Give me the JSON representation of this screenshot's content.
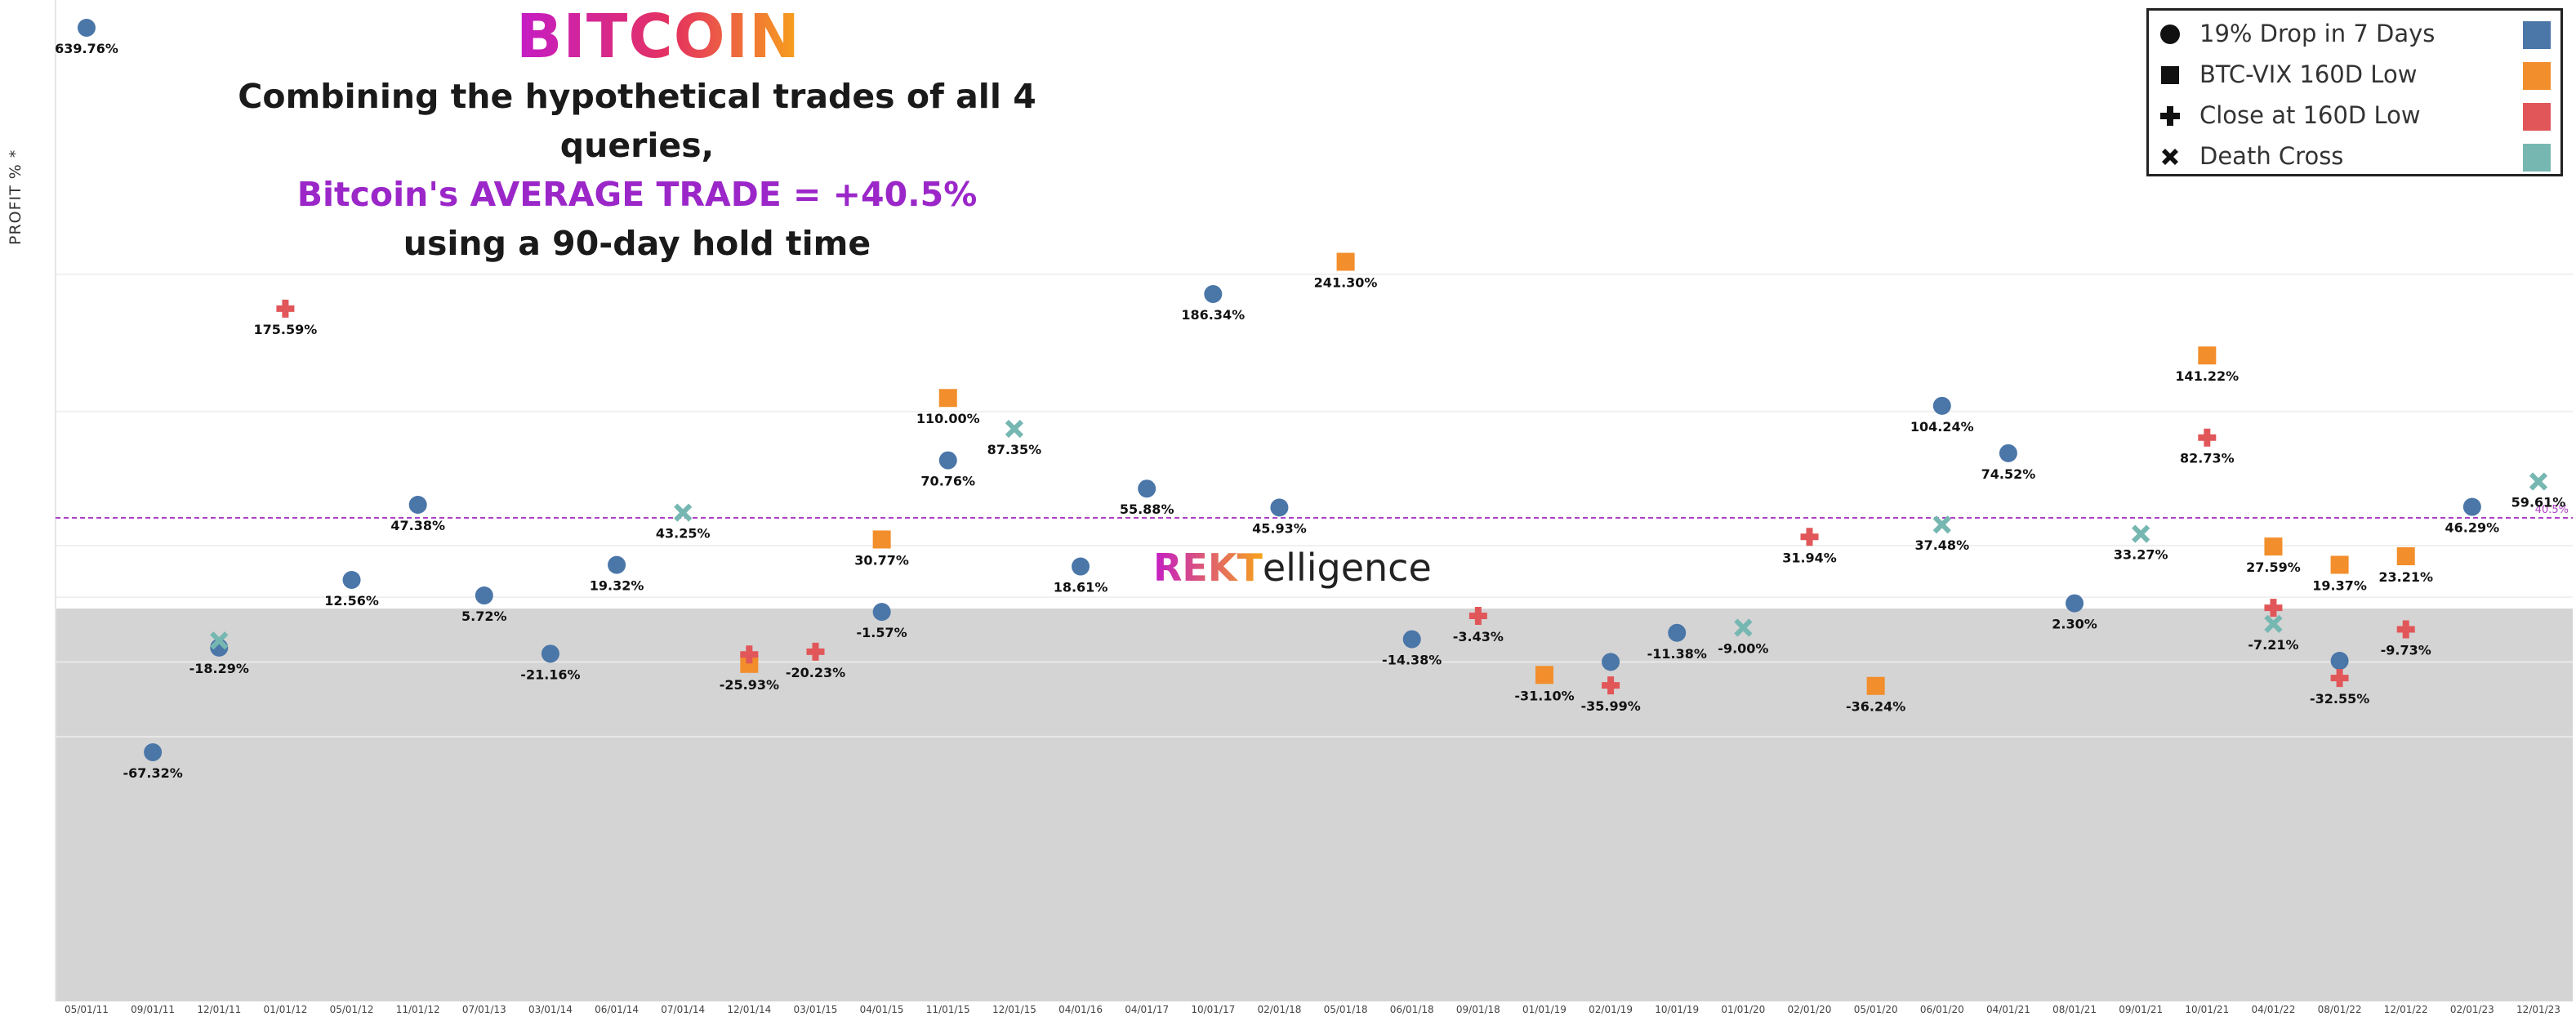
{
  "brand_title": "BITCOIN",
  "headline": {
    "line1": "Combining the hypothetical trades of all 4 queries,",
    "line2": "Bitcoin's AVERAGE TRADE = +40.5%",
    "line3": "using a 90-day hold time"
  },
  "watermark": {
    "part1": "REKT",
    "part2": "elligence"
  },
  "colors": {
    "drop": "#4a76a8",
    "vix": "#f28e2b",
    "close": "#e15759",
    "death": "#76b7b2",
    "average_line": "#b040c8",
    "negative_zone": "#d4d4d4"
  },
  "chart_data": {
    "type": "scatter",
    "ylabel": "PROFIT % *",
    "xlabel": "",
    "x_ticks": [
      "05/01/11",
      "09/01/11",
      "12/01/11",
      "01/01/12",
      "05/01/12",
      "11/01/12",
      "07/01/13",
      "03/01/14",
      "06/01/14",
      "07/01/14",
      "12/01/14",
      "03/01/15",
      "04/01/15",
      "11/01/15",
      "12/01/15",
      "04/01/16",
      "04/01/17",
      "10/01/17",
      "02/01/18",
      "05/01/18",
      "06/01/18",
      "09/01/18",
      "01/01/19",
      "02/01/19",
      "10/01/19",
      "01/01/20",
      "02/01/20",
      "05/01/20",
      "06/01/20",
      "04/01/21",
      "08/01/21",
      "09/01/21",
      "10/01/21",
      "04/01/22",
      "08/01/22",
      "12/01/22",
      "02/01/23",
      "12/01/23"
    ],
    "average_line": {
      "value": 40.5,
      "label": "40.5%"
    },
    "legend_placement": "top-right",
    "series": [
      {
        "name": "19% Drop in 7 Days",
        "marker": "circle",
        "color": "#4a76a8",
        "points": [
          {
            "x": "05/01/11",
            "y": 639.76,
            "label": "639.76%"
          },
          {
            "x": "09/01/11",
            "y": -67.32,
            "label": "-67.32%"
          },
          {
            "x": "12/01/11",
            "y": -18.29,
            "label": "-18.29%"
          },
          {
            "x": "05/01/12",
            "y": 12.56,
            "label": "12.56%"
          },
          {
            "x": "11/01/12",
            "y": 47.38,
            "label": "47.38%"
          },
          {
            "x": "07/01/13",
            "y": 5.72,
            "label": "5.72%"
          },
          {
            "x": "03/01/14",
            "y": -21.16,
            "label": "-21.16%"
          },
          {
            "x": "06/01/14",
            "y": 19.32,
            "label": "19.32%"
          },
          {
            "x": "04/01/15",
            "y": -1.57,
            "label": "-1.57%"
          },
          {
            "x": "11/01/15",
            "y": 70.76,
            "label": "70.76%"
          },
          {
            "x": "04/01/16",
            "y": 18.61,
            "label": "18.61%"
          },
          {
            "x": "04/01/17",
            "y": 55.88,
            "label": "55.88%"
          },
          {
            "x": "10/01/17",
            "y": 186.34,
            "label": "186.34%"
          },
          {
            "x": "02/01/18",
            "y": 45.93,
            "label": "45.93%"
          },
          {
            "x": "06/01/18",
            "y": -14.38,
            "label": "-14.38%"
          },
          {
            "x": "02/01/19",
            "y": -25.0,
            "label": ""
          },
          {
            "x": "10/01/19",
            "y": -11.38,
            "label": "-11.38%"
          },
          {
            "x": "06/01/20",
            "y": 104.24,
            "label": "104.24%"
          },
          {
            "x": "04/01/21",
            "y": 74.52,
            "label": "74.52%"
          },
          {
            "x": "08/01/21",
            "y": 2.3,
            "label": "2.30%"
          },
          {
            "x": "08/01/22",
            "y": -24.5,
            "label": ""
          },
          {
            "x": "02/01/23",
            "y": 46.29,
            "label": "46.29%"
          }
        ]
      },
      {
        "name": "BTC-VIX 160D Low",
        "marker": "square",
        "color": "#f28e2b",
        "points": [
          {
            "x": "12/01/14",
            "y": -25.93,
            "label": "-25.93%"
          },
          {
            "x": "04/01/15",
            "y": 30.77,
            "label": "30.77%"
          },
          {
            "x": "11/01/15",
            "y": 110.0,
            "label": "110.00%"
          },
          {
            "x": "05/01/18",
            "y": 241.3,
            "label": "241.30%"
          },
          {
            "x": "01/01/19",
            "y": -31.1,
            "label": "-31.10%"
          },
          {
            "x": "05/01/20",
            "y": -36.24,
            "label": "-36.24%"
          },
          {
            "x": "10/01/21",
            "y": 141.22,
            "label": "141.22%"
          },
          {
            "x": "04/01/22",
            "y": 27.59,
            "label": "27.59%"
          },
          {
            "x": "08/01/22",
            "y": 19.37,
            "label": "19.37%"
          },
          {
            "x": "12/01/22",
            "y": 23.21,
            "label": "23.21%"
          }
        ]
      },
      {
        "name": "Close at 160D Low",
        "marker": "plus",
        "color": "#e15759",
        "points": [
          {
            "x": "01/01/12",
            "y": 175.59,
            "label": "175.59%"
          },
          {
            "x": "12/01/14",
            "y": -21.5,
            "label": ""
          },
          {
            "x": "03/01/15",
            "y": -20.23,
            "label": "-20.23%"
          },
          {
            "x": "09/01/18",
            "y": -3.43,
            "label": "-3.43%"
          },
          {
            "x": "02/01/19",
            "y": -35.99,
            "label": "-35.99%"
          },
          {
            "x": "02/01/20",
            "y": 31.94,
            "label": "31.94%"
          },
          {
            "x": "10/01/21",
            "y": 82.73,
            "label": "82.73%"
          },
          {
            "x": "04/01/22",
            "y": 0.3,
            "label": ""
          },
          {
            "x": "08/01/22",
            "y": -32.55,
            "label": "-32.55%"
          },
          {
            "x": "12/01/22",
            "y": -9.73,
            "label": "-9.73%"
          }
        ]
      },
      {
        "name": "Death Cross",
        "marker": "x",
        "color": "#76b7b2",
        "points": [
          {
            "x": "12/01/11",
            "y": -15.0,
            "label": ""
          },
          {
            "x": "07/01/14",
            "y": 43.25,
            "label": "43.25%"
          },
          {
            "x": "12/01/15",
            "y": 87.35,
            "label": "87.35%"
          },
          {
            "x": "01/01/20",
            "y": -9.0,
            "label": "-9.00%"
          },
          {
            "x": "06/01/20",
            "y": 37.48,
            "label": "37.48%"
          },
          {
            "x": "09/01/21",
            "y": 33.27,
            "label": "33.27%"
          },
          {
            "x": "04/01/22",
            "y": -7.21,
            "label": "-7.21%"
          },
          {
            "x": "12/01/23",
            "y": 59.61,
            "label": "59.61%"
          }
        ]
      }
    ]
  }
}
